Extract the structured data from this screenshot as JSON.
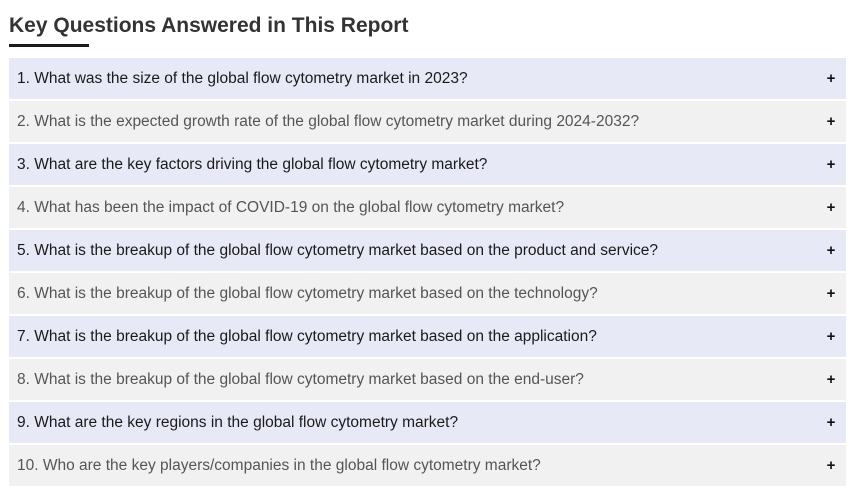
{
  "section": {
    "title": "Key Questions Answered in This Report",
    "toggle_symbol": "+"
  },
  "faq": [
    {
      "question": "1. What was the size of the global flow cytometry market in 2023?"
    },
    {
      "question": "2. What is the expected growth rate of the global flow cytometry market during 2024-2032?"
    },
    {
      "question": "3. What are the key factors driving the global flow cytometry market?"
    },
    {
      "question": "4. What has been the impact of COVID-19 on the global flow cytometry market?"
    },
    {
      "question": "5. What is the breakup of the global flow cytometry market based on the product and service?"
    },
    {
      "question": "6. What is the breakup of the global flow cytometry market based on the technology?"
    },
    {
      "question": "7. What is the breakup of the global flow cytometry market based on the application?"
    },
    {
      "question": "8. What is the breakup of the global flow cytometry market based on the end-user?"
    },
    {
      "question": "9. What are the key regions in the global flow cytometry market?"
    },
    {
      "question": "10. Who are the key players/companies in the global flow cytometry market?"
    }
  ]
}
